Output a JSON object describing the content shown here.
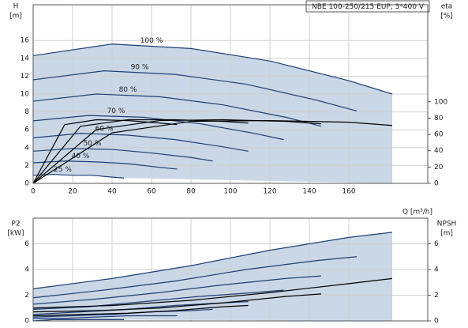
{
  "chart_data": [
    {
      "type": "line",
      "title": "NBE 100-250/215 EUP, 3*400 V",
      "y_label": "H",
      "y_unit": "[m]",
      "y2_label": "eta",
      "y2_unit": "[%]",
      "x_label": "Q [m³/h]",
      "xlim": [
        0,
        200
      ],
      "xticks": [
        0,
        20,
        40,
        60,
        80,
        100,
        120,
        140,
        160
      ],
      "ylim": [
        0,
        20
      ],
      "yticks": [
        0,
        2,
        4,
        6,
        8,
        10,
        12,
        14,
        16
      ],
      "y2lim": [
        0,
        219
      ],
      "y2ticks": [
        0,
        20,
        40,
        60,
        80,
        100
      ],
      "grid": true,
      "range_color": "#c9d7e6",
      "series": [
        {
          "name": "100 %",
          "color": "#1f3f77",
          "x": [
            0,
            40,
            80,
            120,
            160,
            182
          ],
          "values": [
            14.3,
            15.6,
            15.1,
            13.7,
            11.5,
            10.0
          ]
        },
        {
          "name": "90 %",
          "color": "#1f3f77",
          "x": [
            0,
            36,
            72,
            108,
            144,
            164
          ],
          "values": [
            11.6,
            12.6,
            12.2,
            11.1,
            9.3,
            8.1
          ]
        },
        {
          "name": "80 %",
          "color": "#1f3f77",
          "x": [
            0,
            32,
            64,
            96,
            128,
            146
          ],
          "values": [
            9.2,
            10.0,
            9.7,
            8.8,
            7.4,
            6.4
          ]
        },
        {
          "name": "70 %",
          "color": "#1f3f77",
          "x": [
            0,
            28,
            56,
            84,
            112,
            127
          ],
          "values": [
            7.0,
            7.6,
            7.4,
            6.7,
            5.6,
            4.9
          ]
        },
        {
          "name": "60 %",
          "color": "#1f3f77",
          "x": [
            0,
            24,
            48,
            72,
            96,
            109
          ],
          "values": [
            5.1,
            5.6,
            5.4,
            4.9,
            4.1,
            3.6
          ]
        },
        {
          "name": "50 %",
          "color": "#1f3f77",
          "x": [
            0,
            20,
            40,
            60,
            80,
            91
          ],
          "values": [
            3.6,
            3.9,
            3.8,
            3.4,
            2.9,
            2.5
          ]
        },
        {
          "name": "40 %",
          "color": "#1f3f77",
          "x": [
            0,
            16,
            32,
            48,
            64,
            73
          ],
          "values": [
            2.3,
            2.5,
            2.4,
            2.2,
            1.8,
            1.6
          ]
        },
        {
          "name": "25 %",
          "color": "#1f3f77",
          "x": [
            0,
            10,
            20,
            30,
            40,
            46
          ],
          "values": [
            0.9,
            1.0,
            0.9,
            0.9,
            0.7,
            0.6
          ]
        },
        {
          "color": "#000000",
          "axis": "y2",
          "x": [
            0,
            40,
            80,
            120,
            160,
            182
          ],
          "values": [
            0,
            62,
            76,
            77,
            75,
            71
          ]
        },
        {
          "color": "#000000",
          "axis": "y2",
          "x": [
            0,
            32,
            64,
            96,
            128,
            146
          ],
          "values": [
            0,
            66,
            77,
            78,
            76,
            73
          ]
        },
        {
          "color": "#000000",
          "axis": "y2",
          "x": [
            0,
            24,
            48,
            72,
            96,
            109
          ],
          "values": [
            0,
            70,
            78,
            78,
            76,
            74
          ]
        },
        {
          "color": "#000000",
          "axis": "y2",
          "x": [
            0,
            16,
            32,
            48,
            64,
            73
          ],
          "values": [
            0,
            72,
            78,
            77,
            74,
            72
          ]
        }
      ]
    },
    {
      "type": "line",
      "y_label": "P2",
      "y_unit": "[kW]",
      "y2_label": "NPSH",
      "y2_unit": "[m]",
      "xlim": [
        0,
        200
      ],
      "ylim": [
        0,
        8
      ],
      "yticks": [
        0,
        2,
        4,
        6
      ],
      "y2lim": [
        0,
        8
      ],
      "y2ticks": [
        0,
        2,
        4,
        6
      ],
      "grid": true,
      "range_color": "#c9d7e6",
      "series": [
        {
          "color": "#1f3f77",
          "x": [
            0,
            40,
            80,
            120,
            160,
            182
          ],
          "values": [
            2.5,
            3.3,
            4.3,
            5.5,
            6.5,
            6.9
          ]
        },
        {
          "color": "#1f3f77",
          "x": [
            0,
            36,
            72,
            108,
            144,
            164
          ],
          "values": [
            1.8,
            2.4,
            3.1,
            4.0,
            4.7,
            5.0
          ]
        },
        {
          "color": "#1f3f77",
          "x": [
            0,
            32,
            64,
            96,
            128,
            146
          ],
          "values": [
            1.3,
            1.7,
            2.2,
            2.8,
            3.3,
            3.5
          ]
        },
        {
          "color": "#1f3f77",
          "x": [
            0,
            28,
            56,
            84,
            112,
            127
          ],
          "values": [
            0.9,
            1.1,
            1.5,
            1.9,
            2.2,
            2.4
          ]
        },
        {
          "color": "#1f3f77",
          "x": [
            0,
            24,
            48,
            72,
            96,
            109
          ],
          "values": [
            0.5,
            0.7,
            0.9,
            1.2,
            1.4,
            1.5
          ]
        },
        {
          "color": "#1f3f77",
          "x": [
            0,
            20,
            40,
            60,
            80,
            91
          ],
          "values": [
            0.3,
            0.4,
            0.5,
            0.7,
            0.8,
            0.9
          ]
        },
        {
          "color": "#1f3f77",
          "x": [
            0,
            16,
            32,
            48,
            64,
            73
          ],
          "values": [
            0.2,
            0.2,
            0.3,
            0.4,
            0.4,
            0.4
          ]
        },
        {
          "color": "#1f3f77",
          "x": [
            0,
            10,
            20,
            30,
            40,
            46
          ],
          "values": [
            0,
            0.1,
            0.1,
            0.1,
            0.1,
            0.1
          ]
        },
        {
          "color": "#000000",
          "axis": "y2",
          "x": [
            0,
            40,
            80,
            120,
            160,
            182
          ],
          "values": [
            1.0,
            1.2,
            1.6,
            2.2,
            2.9,
            3.3
          ]
        },
        {
          "color": "#000000",
          "axis": "y2",
          "x": [
            0,
            32,
            64,
            96,
            128,
            146
          ],
          "values": [
            0.7,
            0.8,
            1.0,
            1.4,
            1.9,
            2.1
          ]
        },
        {
          "color": "#000000",
          "axis": "y2",
          "x": [
            0,
            24,
            48,
            72,
            96,
            109
          ],
          "values": [
            0.4,
            0.5,
            0.6,
            0.8,
            1.1,
            1.2
          ]
        }
      ]
    }
  ]
}
